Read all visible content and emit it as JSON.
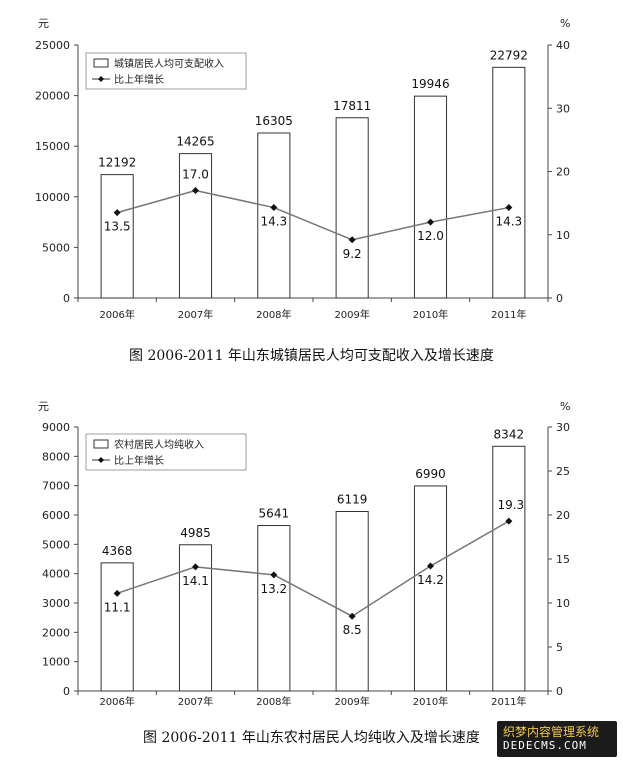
{
  "chart_data": [
    {
      "type": "bar",
      "caption": "图  2006-2011 年山东城镇居民人均可支配收入及增长速度",
      "categories": [
        "2006年",
        "2007年",
        "2008年",
        "2009年",
        "2010年",
        "2011年"
      ],
      "left_unit": "元",
      "right_unit": "%",
      "ylim": [
        0,
        25000
      ],
      "yticks": [
        0,
        5000,
        10000,
        15000,
        20000,
        25000
      ],
      "y2lim": [
        0,
        40
      ],
      "y2ticks": [
        0,
        10,
        20,
        30,
        40
      ],
      "grid": false,
      "legend_position": "top-left",
      "series": [
        {
          "name": "城镇居民人均可支配收入",
          "kind": "bar",
          "axis": "left",
          "values": [
            12192,
            14265,
            16305,
            17811,
            19946,
            22792
          ]
        },
        {
          "name": "比上年增长",
          "kind": "line",
          "axis": "right",
          "values": [
            13.5,
            17.0,
            14.3,
            9.2,
            12.0,
            14.3
          ]
        }
      ]
    },
    {
      "type": "bar",
      "caption": "图  2006-2011 年山东农村居民人均纯收入及增长速度",
      "categories": [
        "2006年",
        "2007年",
        "2008年",
        "2009年",
        "2010年",
        "2011年"
      ],
      "left_unit": "元",
      "right_unit": "%",
      "ylim": [
        0,
        9000
      ],
      "yticks": [
        0,
        1000,
        2000,
        3000,
        4000,
        5000,
        6000,
        7000,
        8000,
        9000
      ],
      "y2lim": [
        0,
        30
      ],
      "y2ticks": [
        0,
        5,
        10,
        15,
        20,
        25,
        30
      ],
      "grid": false,
      "legend_position": "top-left",
      "series": [
        {
          "name": "农村居民人均纯收入",
          "kind": "bar",
          "axis": "left",
          "values": [
            4368,
            4985,
            5641,
            6119,
            6990,
            8342
          ]
        },
        {
          "name": "比上年增长",
          "kind": "line",
          "axis": "right",
          "values": [
            11.1,
            14.1,
            13.2,
            8.5,
            14.2,
            19.3
          ]
        }
      ]
    }
  ],
  "watermark": {
    "line1": "织梦内容管理系统",
    "line2": "DEDECMS.COM"
  }
}
